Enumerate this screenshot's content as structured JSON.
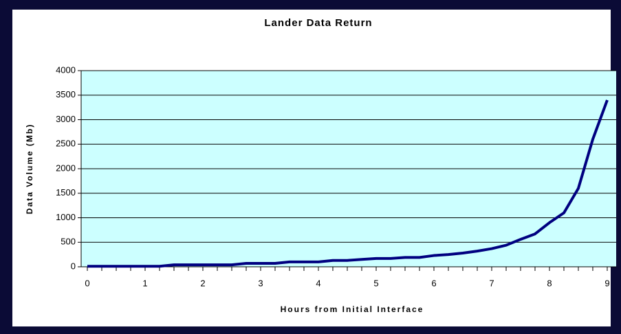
{
  "chart_data": {
    "type": "line",
    "title": "Lander Data Return",
    "xlabel": "Hours from Initial Interface",
    "ylabel": "Data Volume (Mb)",
    "x": [
      0,
      0.25,
      0.5,
      0.75,
      1,
      1.25,
      1.5,
      1.75,
      2,
      2.25,
      2.5,
      2.75,
      3,
      3.25,
      3.5,
      3.75,
      4,
      4.25,
      4.5,
      4.75,
      5,
      5.25,
      5.5,
      5.75,
      6,
      6.25,
      6.5,
      6.75,
      7,
      7.25,
      7.5,
      7.75,
      8,
      8.25,
      8.5,
      8.75,
      9
    ],
    "series": [
      {
        "name": "Data Volume",
        "color": "#000080",
        "values": [
          10,
          10,
          10,
          10,
          10,
          10,
          40,
          40,
          40,
          40,
          40,
          70,
          70,
          70,
          100,
          100,
          100,
          130,
          130,
          150,
          170,
          170,
          190,
          190,
          230,
          250,
          280,
          320,
          370,
          440,
          560,
          670,
          900,
          1100,
          1600,
          2600,
          3400
        ]
      }
    ],
    "xlim": [
      -0.107,
      9.155
    ],
    "xticks": [
      0,
      1,
      2,
      3,
      4,
      5,
      6,
      7,
      8,
      9
    ],
    "xminorticks": [
      0,
      0.25,
      0.5,
      0.75,
      1,
      1.25,
      1.5,
      1.75,
      2,
      2.25,
      2.5,
      2.75,
      3,
      3.25,
      3.5,
      3.75,
      4,
      4.25,
      4.5,
      4.75,
      5,
      5.25,
      5.5,
      5.75,
      6,
      6.25,
      6.5,
      6.75,
      7,
      7.25,
      7.5,
      7.75,
      8,
      8.25,
      8.5,
      8.75,
      9
    ],
    "ylim": [
      0,
      4000
    ],
    "yticks": [
      0,
      500,
      1000,
      1500,
      2000,
      2500,
      3000,
      3500,
      4000
    ],
    "grid": true,
    "plot_background": "#ccffff"
  }
}
